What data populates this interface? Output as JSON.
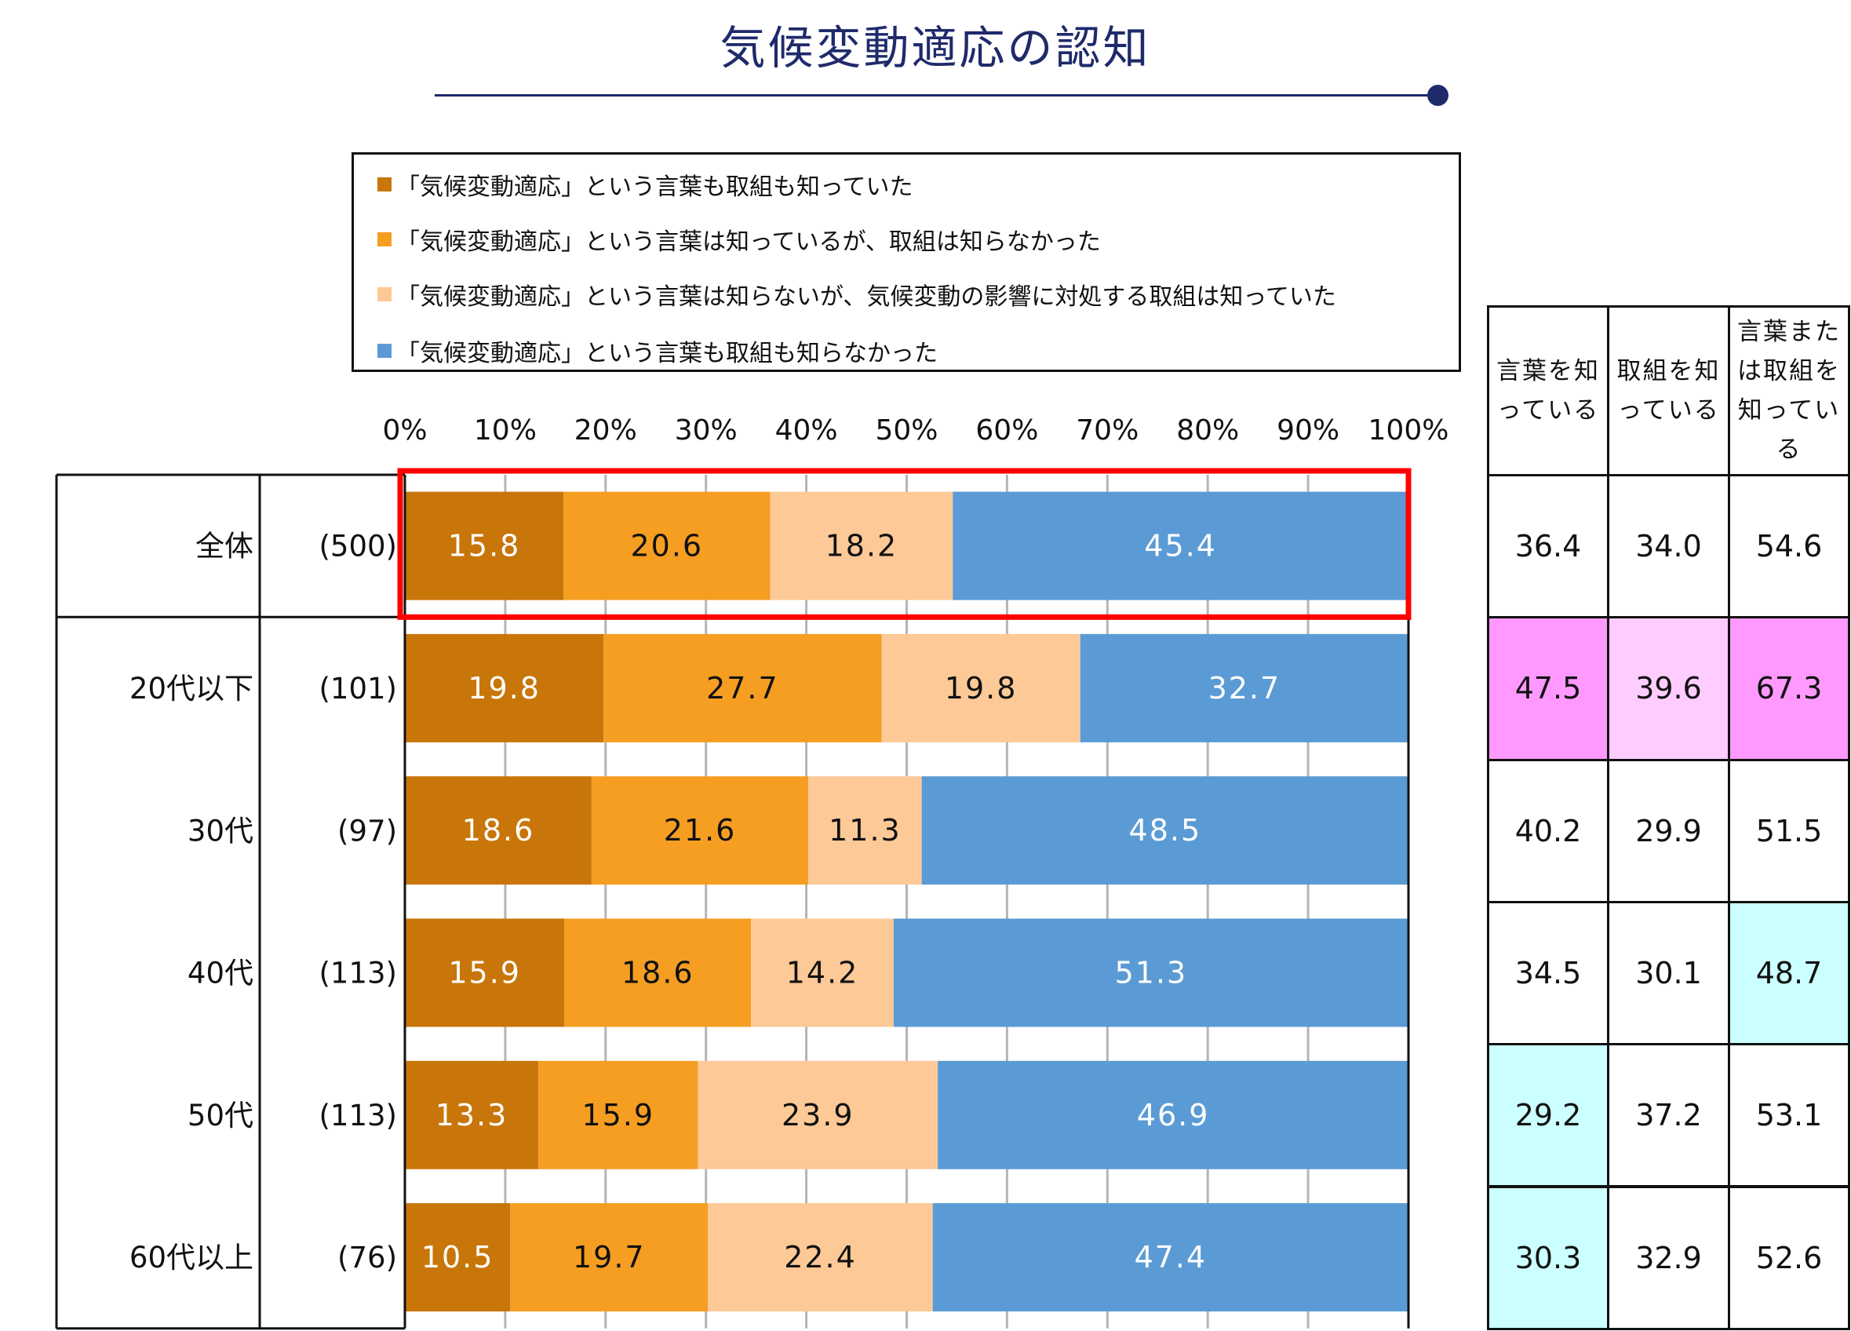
{
  "title": "気候変動適応の認知",
  "colors": {
    "title": "#1f2a6b",
    "highlight_box": "#ff0000",
    "cell_pink": "#ff99ff",
    "cell_light_pink": "#ffccff",
    "cell_cyan": "#ccffff"
  },
  "chart_data": {
    "type": "bar",
    "orientation": "horizontal",
    "stacked": true,
    "title": "気候変動適応の認知",
    "xlim": [
      0,
      100
    ],
    "x_ticks": [
      "0%",
      "10%",
      "20%",
      "30%",
      "40%",
      "50%",
      "60%",
      "70%",
      "80%",
      "90%",
      "100%"
    ],
    "grid": "vertical",
    "legend_position": "top",
    "categories": [
      "全体",
      "20代以下",
      "30代",
      "40代",
      "50代",
      "60代以上"
    ],
    "sample_sizes": [
      "(500)",
      "(101)",
      "(97)",
      "(113)",
      "(113)",
      "(76)"
    ],
    "highlighted_category": "全体",
    "series": [
      {
        "name": "「気候変動適応」という言葉も取組も知っていた",
        "color": "#c87609",
        "label_color": "#ffffff",
        "values": [
          15.8,
          19.8,
          18.6,
          15.9,
          13.3,
          10.5
        ]
      },
      {
        "name": "「気候変動適応」という言葉は知っているが、取組は知らなかった",
        "color": "#f59e22",
        "label_color": "#111111",
        "values": [
          20.6,
          27.7,
          21.6,
          18.6,
          15.9,
          19.7
        ]
      },
      {
        "name": "「気候変動適応」という言葉は知らないが、気候変動の影響に対処する取組は知っていた",
        "color": "#fdc997",
        "label_color": "#111111",
        "values": [
          18.2,
          19.8,
          11.3,
          14.2,
          23.9,
          22.4
        ]
      },
      {
        "name": "「気候変動適応」という言葉も取組も知らなかった",
        "color": "#5b9bd5",
        "label_color": "#ffffff",
        "values": [
          45.4,
          32.7,
          48.5,
          51.3,
          46.9,
          47.4
        ]
      }
    ]
  },
  "summary_table": {
    "headers": [
      "言葉を知っている",
      "取組を知っている",
      "言葉または取組を知っている"
    ],
    "rows": [
      {
        "values": [
          "36.4",
          "34.0",
          "54.6"
        ],
        "fills": [
          "",
          "",
          ""
        ]
      },
      {
        "values": [
          "47.5",
          "39.6",
          "67.3"
        ],
        "fills": [
          "pink",
          "light_pink",
          "pink"
        ]
      },
      {
        "values": [
          "40.2",
          "29.9",
          "51.5"
        ],
        "fills": [
          "",
          "",
          ""
        ]
      },
      {
        "values": [
          "34.5",
          "30.1",
          "48.7"
        ],
        "fills": [
          "",
          "",
          "cyan"
        ]
      },
      {
        "values": [
          "29.2",
          "37.2",
          "53.1"
        ],
        "fills": [
          "cyan",
          "",
          ""
        ]
      },
      {
        "values": [
          "30.3",
          "32.9",
          "52.6"
        ],
        "fills": [
          "cyan",
          "",
          ""
        ]
      }
    ]
  }
}
